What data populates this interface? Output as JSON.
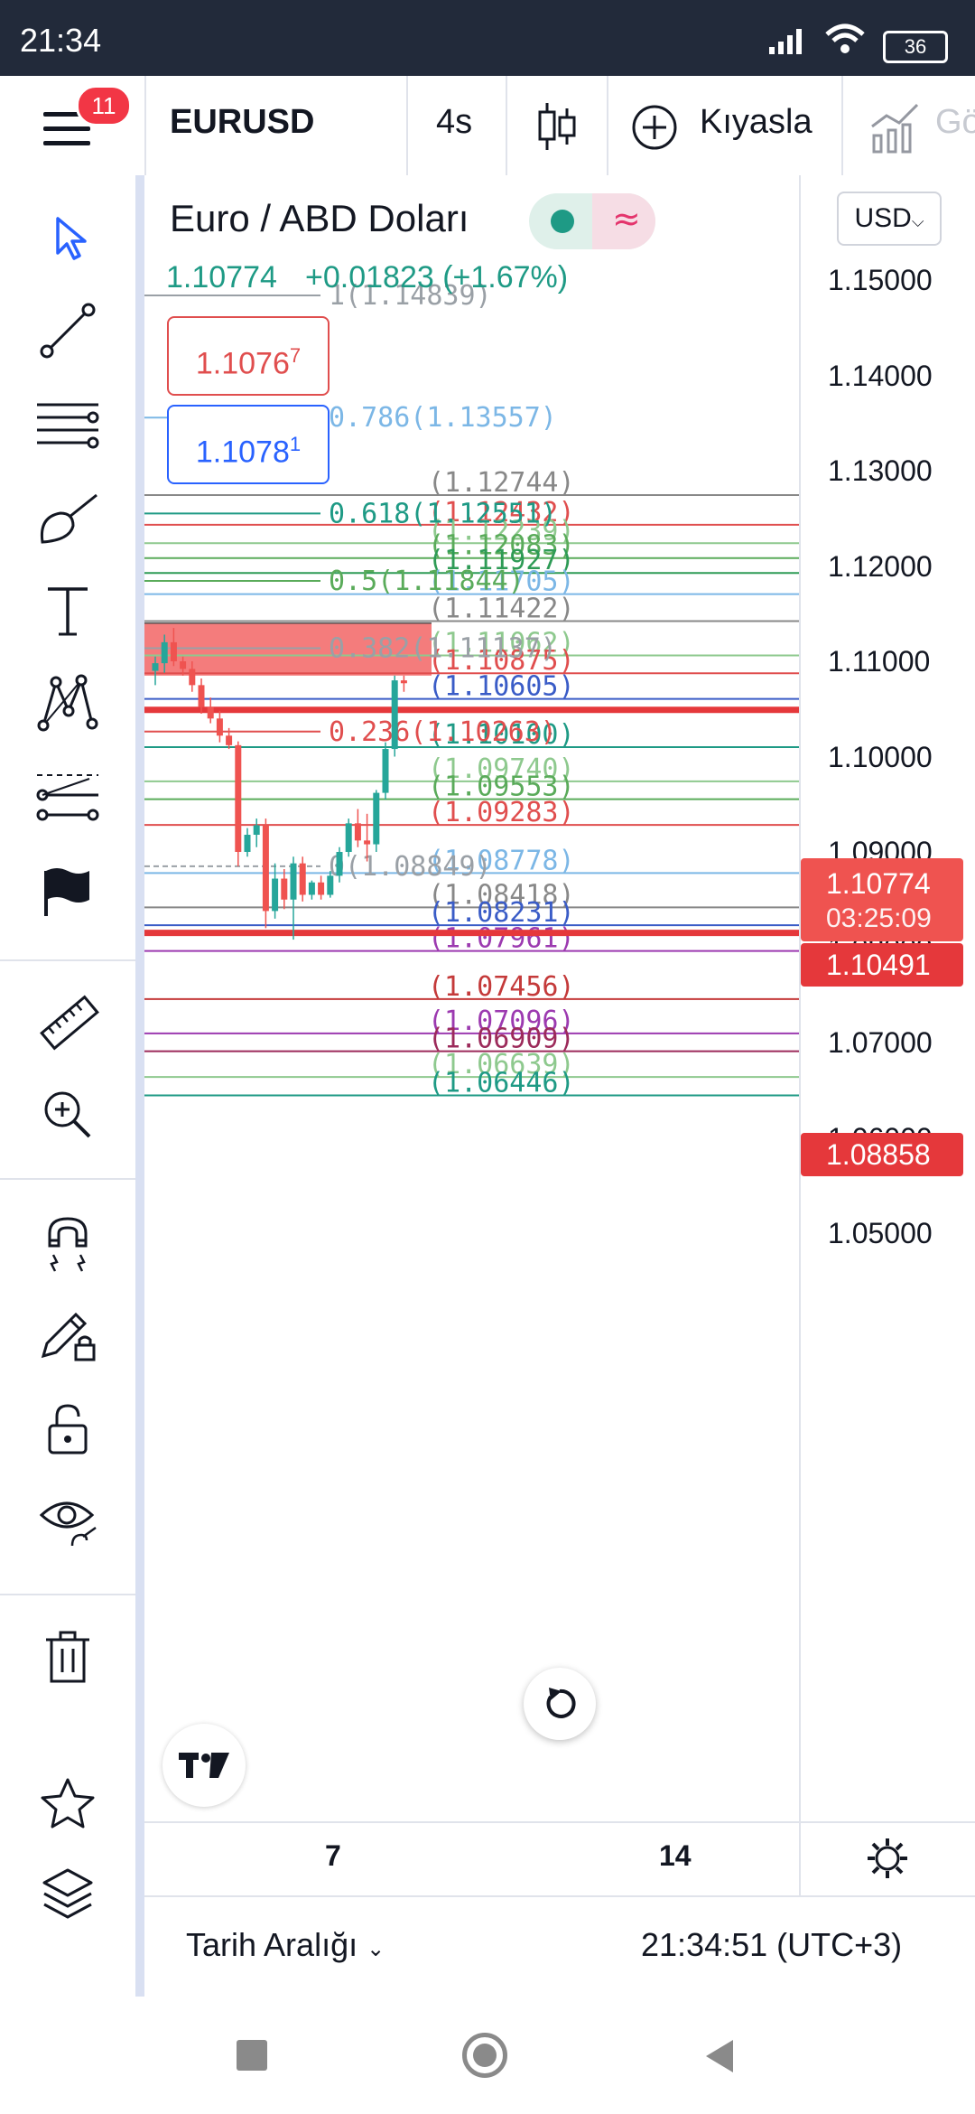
{
  "status_bar": {
    "time": "21:34",
    "battery": "36"
  },
  "toolbar": {
    "notifications": "11",
    "symbol": "EURUSD",
    "interval": "4s",
    "compare_label": "Kıyasla",
    "cut_label": "Gö"
  },
  "legend": {
    "title": "Euro / ABD Doları",
    "last_price": "1.10774",
    "change": "+0.01823 (+1.67%)",
    "sell_price": "1.1076",
    "sell_sup": "7",
    "buy_price": "1.1078",
    "buy_sup": "1",
    "currency": "USD"
  },
  "price_axis": {
    "ticks": [
      "1.15000",
      "1.14000",
      "1.13000",
      "1.12000",
      "1.11000",
      "1.10000",
      "1.09000",
      "1.08000",
      "1.07000",
      "1.06000",
      "1.05000"
    ],
    "current_price": "1.10774",
    "countdown": "03:25:09",
    "marker_1": "1.10491",
    "marker_2": "1.08858"
  },
  "time_axis": {
    "labels": [
      "7",
      "14"
    ]
  },
  "bottom_bar": {
    "range_label": "Tarih Aralığı",
    "clock": "21:34:51 (UTC+3)"
  },
  "fib_levels": [
    {
      "label": "1(1.14839)",
      "price": 1.14839,
      "color": "#9aa0a6"
    },
    {
      "label": "0.786(1.13557)",
      "price": 1.13557,
      "color": "#7cb7e6"
    },
    {
      "label": "0.618(1.12551)",
      "price": 1.12551,
      "color": "#1e9a85"
    },
    {
      "label": "0.5(1.11844)",
      "price": 1.11844,
      "color": "#5aab5a"
    },
    {
      "label": "0.382(1.11137)",
      "price": 1.11137,
      "color": "#9aa0a6"
    },
    {
      "label": "0.236(1.10263)",
      "price": 1.10263,
      "color": "#e04e4e"
    },
    {
      "label": "0(1.08849)",
      "price": 1.08849,
      "color": "#9aa0a6"
    }
  ],
  "levels": [
    {
      "label": "(1.12744)",
      "price": 1.12744,
      "color": "#888888"
    },
    {
      "label": "(1.12432)",
      "price": 1.12432,
      "color": "#e04e4e"
    },
    {
      "label": "(1.12239)",
      "price": 1.12239,
      "color": "#8ec98e"
    },
    {
      "label": "(1.12083)",
      "price": 1.12083,
      "color": "#5aab5a"
    },
    {
      "label": "(1.11927)",
      "price": 1.11927,
      "color": "#2e9b56"
    },
    {
      "label": "(1.11705)",
      "price": 1.11705,
      "color": "#7cb7e6"
    },
    {
      "label": "(1.11422)",
      "price": 1.11422,
      "color": "#888888"
    },
    {
      "label": "(1.11062)",
      "price": 1.11062,
      "color": "#8ec98e"
    },
    {
      "label": "(1.10875)",
      "price": 1.10875,
      "color": "#e04e4e"
    },
    {
      "label": "(1.10605)",
      "price": 1.10605,
      "color": "#3a5cc7"
    },
    {
      "label": "(1.10100)",
      "price": 1.101,
      "color": "#1e9a85"
    },
    {
      "label": "(1.09740)",
      "price": 1.0974,
      "color": "#8ec98e"
    },
    {
      "label": "(1.09553)",
      "price": 1.09553,
      "color": "#5aab5a"
    },
    {
      "label": "(1.09283)",
      "price": 1.09283,
      "color": "#e04e4e"
    },
    {
      "label": "(1.08778)",
      "price": 1.08778,
      "color": "#7cb7e6"
    },
    {
      "label": "(1.08418)",
      "price": 1.08418,
      "color": "#888888"
    },
    {
      "label": "(1.08231)",
      "price": 1.08231,
      "color": "#3a5cc7"
    },
    {
      "label": "(1.07961)",
      "price": 1.07961,
      "color": "#9c3ab0"
    },
    {
      "label": "(1.07456)",
      "price": 1.07456,
      "color": "#c43a3a"
    },
    {
      "label": "(1.07096)",
      "price": 1.07096,
      "color": "#9c3ab0"
    },
    {
      "label": "(1.06909)",
      "price": 1.06909,
      "color": "#9c2a5a"
    },
    {
      "label": "(1.06639)",
      "price": 1.06639,
      "color": "#8ec98e"
    },
    {
      "label": "(1.06446)",
      "price": 1.06446,
      "color": "#1e9a85"
    }
  ],
  "candles": [
    {
      "o": 1.109,
      "h": 1.1105,
      "l": 1.1075,
      "c": 1.1098
    },
    {
      "o": 1.1098,
      "h": 1.1128,
      "l": 1.1088,
      "c": 1.112
    },
    {
      "o": 1.112,
      "h": 1.1135,
      "l": 1.1095,
      "c": 1.11
    },
    {
      "o": 1.11,
      "h": 1.1105,
      "l": 1.1085,
      "c": 1.1092
    },
    {
      "o": 1.1092,
      "h": 1.11,
      "l": 1.1068,
      "c": 1.1075
    },
    {
      "o": 1.1075,
      "h": 1.1082,
      "l": 1.1045,
      "c": 1.1052
    },
    {
      "o": 1.1052,
      "h": 1.1062,
      "l": 1.1035,
      "c": 1.104
    },
    {
      "o": 1.104,
      "h": 1.1048,
      "l": 1.1015,
      "c": 1.1022
    },
    {
      "o": 1.1022,
      "h": 1.103,
      "l": 1.1008,
      "c": 1.1012
    },
    {
      "o": 1.1012,
      "h": 1.1016,
      "l": 1.0885,
      "c": 1.09
    },
    {
      "o": 1.09,
      "h": 1.0925,
      "l": 1.0895,
      "c": 1.0918
    },
    {
      "o": 1.0918,
      "h": 1.0935,
      "l": 1.0905,
      "c": 1.0928
    },
    {
      "o": 1.0928,
      "h": 1.0935,
      "l": 1.082,
      "c": 1.0838
    },
    {
      "o": 1.0838,
      "h": 1.0888,
      "l": 1.083,
      "c": 1.0872
    },
    {
      "o": 1.0872,
      "h": 1.0882,
      "l": 1.084,
      "c": 1.085
    },
    {
      "o": 1.085,
      "h": 1.0895,
      "l": 1.0808,
      "c": 1.0888
    },
    {
      "o": 1.0888,
      "h": 1.0895,
      "l": 1.0848,
      "c": 1.0855
    },
    {
      "o": 1.0855,
      "h": 1.087,
      "l": 1.085,
      "c": 1.0868
    },
    {
      "o": 1.0868,
      "h": 1.0875,
      "l": 1.085,
      "c": 1.0855
    },
    {
      "o": 1.0855,
      "h": 1.088,
      "l": 1.0852,
      "c": 1.0875
    },
    {
      "o": 1.0875,
      "h": 1.0905,
      "l": 1.0868,
      "c": 1.09
    },
    {
      "o": 1.09,
      "h": 1.0935,
      "l": 1.0895,
      "c": 1.093
    },
    {
      "o": 1.093,
      "h": 1.0945,
      "l": 1.0905,
      "c": 1.0912
    },
    {
      "o": 1.0912,
      "h": 1.094,
      "l": 1.089,
      "c": 1.0908
    },
    {
      "o": 1.0908,
      "h": 1.0965,
      "l": 1.09,
      "c": 1.0962
    },
    {
      "o": 1.0962,
      "h": 1.1015,
      "l": 1.0955,
      "c": 1.1008
    },
    {
      "o": 1.1008,
      "h": 1.1085,
      "l": 1.1,
      "c": 1.108
    },
    {
      "o": 1.108,
      "h": 1.1085,
      "l": 1.1068,
      "c": 1.1077
    }
  ],
  "colors": {
    "up": "#26a69a",
    "down": "#ef5350",
    "supply_zone": "#f47c7c",
    "support": "#e5383b"
  }
}
